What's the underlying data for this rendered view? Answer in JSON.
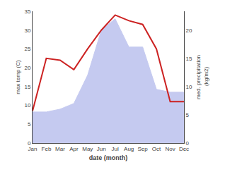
{
  "chart_data": {
    "type": "line",
    "categories": [
      "Jan",
      "Feb",
      "Mar",
      "Apr",
      "May",
      "Jun",
      "Jul",
      "Aug",
      "Sep",
      "Oct",
      "Nov",
      "Dec"
    ],
    "series": [
      {
        "type": "line",
        "color": "#cc2222",
        "values": [
          8.5,
          22.5,
          22,
          19.5,
          25,
          30,
          34,
          32.5,
          31.5,
          25,
          11,
          11
        ]
      },
      {
        "type": "area",
        "color": "#c5caf0",
        "axis": "y2",
        "values": [
          5.5,
          5.5,
          6,
          7,
          12,
          20,
          22,
          17,
          17,
          9.5,
          9,
          9
        ]
      }
    ],
    "xlabel": "date (month)",
    "ylabel": "max temp (C)",
    "y2label": "med. precipitation\n (kg/m2)",
    "ylim": [
      0,
      35
    ],
    "yticks": [
      0,
      5,
      10,
      15,
      20,
      25,
      30,
      35
    ],
    "y2lim": [
      0,
      23.33
    ],
    "y2ticks": [
      0,
      5,
      10,
      15,
      20
    ],
    "grid": false
  }
}
